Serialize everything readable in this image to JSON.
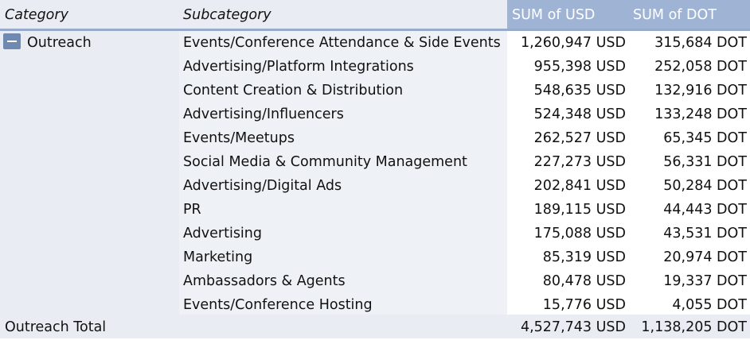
{
  "headers": {
    "category": "Category",
    "subcategory": "Subcategory",
    "sum_usd": "SUM of USD",
    "sum_dot": "SUM of DOT"
  },
  "colors": {
    "header_value_bg": "#9fb4d5",
    "row_label_bg": "#e9edf3",
    "toggle_bg": "#6f89b1"
  },
  "group": {
    "toggle_icon": "collapse-minus-icon",
    "category": "Outreach",
    "rows": [
      {
        "subcategory": "Events/Conference Attendance & Side Events",
        "usd": "1,260,947 USD",
        "dot": "315,684 DOT"
      },
      {
        "subcategory": "Advertising/Platform Integrations",
        "usd": "955,398 USD",
        "dot": "252,058 DOT"
      },
      {
        "subcategory": "Content Creation & Distribution",
        "usd": "548,635 USD",
        "dot": "132,916 DOT"
      },
      {
        "subcategory": "Advertising/Influencers",
        "usd": "524,348 USD",
        "dot": "133,248 DOT"
      },
      {
        "subcategory": "Events/Meetups",
        "usd": "262,527 USD",
        "dot": "65,345 DOT"
      },
      {
        "subcategory": "Social Media & Community Management",
        "usd": "227,273 USD",
        "dot": "56,331 DOT"
      },
      {
        "subcategory": "Advertising/Digital Ads",
        "usd": "202,841 USD",
        "dot": "50,284 DOT"
      },
      {
        "subcategory": "PR",
        "usd": "189,115 USD",
        "dot": "44,443 DOT"
      },
      {
        "subcategory": "Advertising",
        "usd": "175,088 USD",
        "dot": "43,531 DOT"
      },
      {
        "subcategory": "Marketing",
        "usd": "85,319 USD",
        "dot": "20,974 DOT"
      },
      {
        "subcategory": "Ambassadors & Agents",
        "usd": "80,478 USD",
        "dot": "19,337 DOT"
      },
      {
        "subcategory": "Events/Conference Hosting",
        "usd": "15,776 USD",
        "dot": "4,055 DOT"
      }
    ]
  },
  "total": {
    "label": "Outreach Total",
    "usd": "4,527,743 USD",
    "dot": "1,138,205 DOT"
  }
}
